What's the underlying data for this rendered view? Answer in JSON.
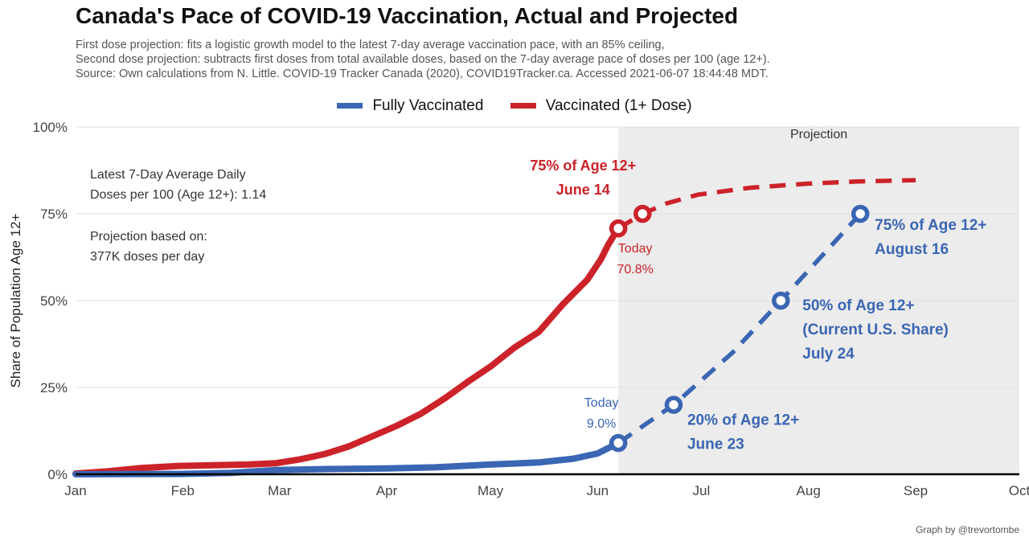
{
  "title": "Canada's Pace of COVID-19 Vaccination, Actual and Projected",
  "subtitle_lines": [
    "First dose projection: fits a logistic growth model to the latest 7-day average vaccination pace, with an 85% ceiling,",
    "Second dose projection: subtracts first doses from total available doses, based on the 7-day average pace of doses per 100 (age 12+).",
    "Source: Own calculations from N. Little. COVID-19 Tracker Canada (2020), COVID19Tracker.ca. Accessed 2021-06-07 18:44:48 MDT."
  ],
  "legend": [
    {
      "label": "Fully Vaccinated",
      "color": "#3a66b3"
    },
    {
      "label": "Vaccinated (1+ Dose)",
      "color": "#cc2229"
    }
  ],
  "note": {
    "pace_line1": "Latest 7-Day Average Daily",
    "pace_line2": "Doses per 100 (Age 12+): 1.14",
    "basis_line1": "Projection based on:",
    "basis_line2": "377K doses per day"
  },
  "projection_label": "Projection",
  "footer": "Graph by @trevortombe",
  "colors": {
    "first_dose": "#cc2229",
    "fully": "#3a66b3",
    "projection_bg": "#ececec",
    "grid": "#e3e3e3"
  },
  "chart_data": {
    "type": "line",
    "xlabel": "",
    "ylabel": "Share of Population Age 12+",
    "x_unit": "date (2021)",
    "xlim": [
      "2021-01-01",
      "2021-10-01"
    ],
    "ylim": [
      0,
      100
    ],
    "x_ticks": [
      {
        "date": "2021-01-01",
        "label": "Jan"
      },
      {
        "date": "2021-02-01",
        "label": "Feb"
      },
      {
        "date": "2021-03-01",
        "label": "Mar"
      },
      {
        "date": "2021-04-01",
        "label": "Apr"
      },
      {
        "date": "2021-05-01",
        "label": "May"
      },
      {
        "date": "2021-06-01",
        "label": "Jun"
      },
      {
        "date": "2021-07-01",
        "label": "Jul"
      },
      {
        "date": "2021-08-01",
        "label": "Aug"
      },
      {
        "date": "2021-09-01",
        "label": "Sep"
      },
      {
        "date": "2021-10-01",
        "label": "Oct"
      }
    ],
    "y_ticks": [
      {
        "value": 0,
        "label": "0%"
      },
      {
        "value": 25,
        "label": "25%"
      },
      {
        "value": 50,
        "label": "50%"
      },
      {
        "value": 75,
        "label": "75%"
      },
      {
        "value": 100,
        "label": "100%"
      }
    ],
    "grid": true,
    "legend_position": "top",
    "projection_start": "2021-06-07",
    "projection_end": "2021-10-01",
    "series": [
      {
        "name": "Vaccinated (1+ Dose)",
        "actual": [
          [
            "2021-01-01",
            0.2
          ],
          [
            "2021-01-10",
            0.8
          ],
          [
            "2021-01-20",
            1.8
          ],
          [
            "2021-01-31",
            2.4
          ],
          [
            "2021-02-10",
            2.6
          ],
          [
            "2021-02-20",
            2.8
          ],
          [
            "2021-02-28",
            3.2
          ],
          [
            "2021-03-07",
            4.3
          ],
          [
            "2021-03-14",
            5.8
          ],
          [
            "2021-03-21",
            8.0
          ],
          [
            "2021-03-28",
            11.0
          ],
          [
            "2021-04-04",
            14.0
          ],
          [
            "2021-04-11",
            17.5
          ],
          [
            "2021-04-18",
            22.0
          ],
          [
            "2021-04-25",
            27.0
          ],
          [
            "2021-05-01",
            31.0
          ],
          [
            "2021-05-08",
            36.5
          ],
          [
            "2021-05-15",
            41.0
          ],
          [
            "2021-05-22",
            49.0
          ],
          [
            "2021-05-29",
            56.0
          ],
          [
            "2021-06-02",
            62.0
          ],
          [
            "2021-06-04",
            66.0
          ],
          [
            "2021-06-07",
            70.8
          ]
        ],
        "projected": [
          [
            "2021-06-07",
            70.8
          ],
          [
            "2021-06-14",
            75.0
          ],
          [
            "2021-06-21",
            78.0
          ],
          [
            "2021-06-30",
            80.5
          ],
          [
            "2021-07-15",
            82.5
          ],
          [
            "2021-08-01",
            83.7
          ],
          [
            "2021-08-15",
            84.3
          ],
          [
            "2021-09-01",
            84.7
          ]
        ]
      },
      {
        "name": "Fully Vaccinated",
        "actual": [
          [
            "2021-01-01",
            0.0
          ],
          [
            "2021-01-31",
            0.1
          ],
          [
            "2021-02-15",
            0.4
          ],
          [
            "2021-02-28",
            1.2
          ],
          [
            "2021-03-15",
            1.5
          ],
          [
            "2021-04-01",
            1.7
          ],
          [
            "2021-04-15",
            2.0
          ],
          [
            "2021-05-01",
            2.8
          ],
          [
            "2021-05-15",
            3.4
          ],
          [
            "2021-05-25",
            4.5
          ],
          [
            "2021-06-01",
            6.0
          ],
          [
            "2021-06-07",
            9.0
          ]
        ],
        "projected": [
          [
            "2021-06-07",
            9.0
          ],
          [
            "2021-06-23",
            20.0
          ],
          [
            "2021-07-10",
            35.0
          ],
          [
            "2021-07-24",
            50.0
          ],
          [
            "2021-08-05",
            63.0
          ],
          [
            "2021-08-16",
            75.0
          ]
        ]
      }
    ],
    "annotations": [
      {
        "series": "Vaccinated (1+ Dose)",
        "date": "2021-06-07",
        "value": 70.8,
        "lines": [
          "Today",
          "70.8%"
        ],
        "bold": false
      },
      {
        "series": "Vaccinated (1+ Dose)",
        "date": "2021-06-14",
        "value": 75.0,
        "lines": [
          "75% of Age 12+",
          "June 14"
        ],
        "bold": true
      },
      {
        "series": "Fully Vaccinated",
        "date": "2021-06-07",
        "value": 9.0,
        "lines": [
          "Today",
          "9.0%"
        ],
        "bold": false
      },
      {
        "series": "Fully Vaccinated",
        "date": "2021-06-23",
        "value": 20.0,
        "lines": [
          "20% of Age 12+",
          "June 23"
        ],
        "bold": true
      },
      {
        "series": "Fully Vaccinated",
        "date": "2021-07-24",
        "value": 50.0,
        "lines": [
          "50% of Age 12+",
          "(Current U.S. Share)",
          "July 24"
        ],
        "bold": true
      },
      {
        "series": "Fully Vaccinated",
        "date": "2021-08-16",
        "value": 75.0,
        "lines": [
          "75% of Age 12+",
          "August 16"
        ],
        "bold": true
      }
    ]
  }
}
